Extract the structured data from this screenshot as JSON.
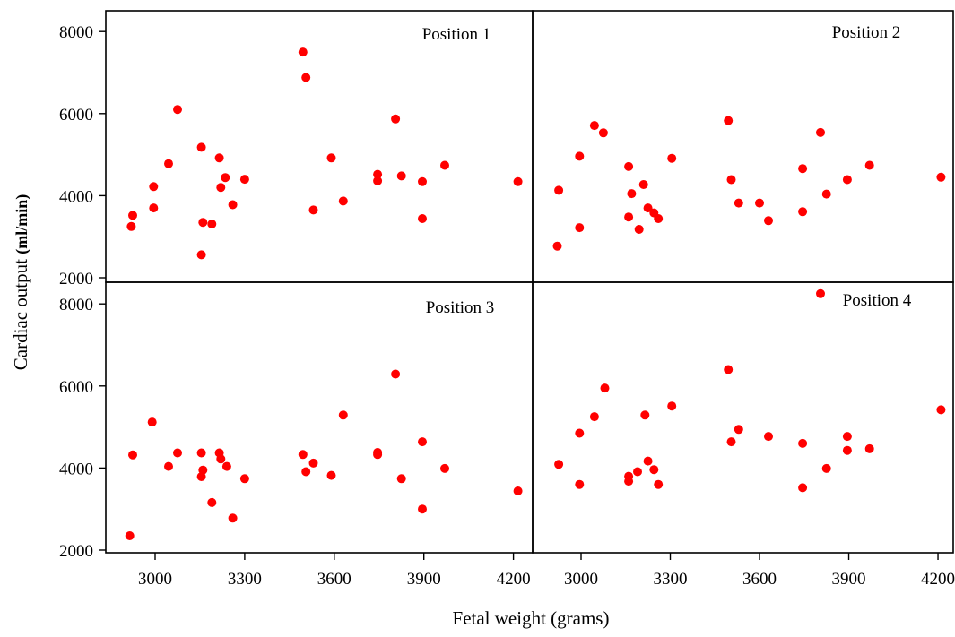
{
  "chart_data": {
    "type": "scatter",
    "layout": "2x2 faceted panels",
    "xlabel": "Fetal weight (grams)",
    "ylabel_main": "Cardiac output ",
    "ylabel_unit": "(ml/min)",
    "xlim": [
      2880,
      4310
    ],
    "ylim": [
      1900,
      8500
    ],
    "xticks": [
      3000,
      3300,
      3600,
      3900,
      4200
    ],
    "yticks": [
      2000,
      4000,
      6000,
      8000
    ],
    "grid": false,
    "point_color": "#ff0000",
    "panels": [
      {
        "title": "Position 1",
        "points": [
          [
            2920,
            3250
          ],
          [
            2925,
            3520
          ],
          [
            2995,
            4220
          ],
          [
            2995,
            3700
          ],
          [
            3045,
            4780
          ],
          [
            3075,
            6100
          ],
          [
            3155,
            5180
          ],
          [
            3155,
            2560
          ],
          [
            3160,
            3350
          ],
          [
            3190,
            3310
          ],
          [
            3215,
            4920
          ],
          [
            3220,
            4200
          ],
          [
            3235,
            4440
          ],
          [
            3260,
            3780
          ],
          [
            3300,
            4400
          ],
          [
            3495,
            7500
          ],
          [
            3505,
            6880
          ],
          [
            3530,
            3650
          ],
          [
            3590,
            4920
          ],
          [
            3630,
            3870
          ],
          [
            3745,
            4520
          ],
          [
            3745,
            4360
          ],
          [
            3805,
            5870
          ],
          [
            3825,
            4480
          ],
          [
            3895,
            4340
          ],
          [
            3895,
            3440
          ],
          [
            3970,
            4740
          ],
          [
            4215,
            4340
          ]
        ]
      },
      {
        "title": "Position 2",
        "points": [
          [
            2920,
            2770
          ],
          [
            2925,
            4130
          ],
          [
            2995,
            4960
          ],
          [
            2995,
            3220
          ],
          [
            3045,
            5710
          ],
          [
            3075,
            5530
          ],
          [
            3160,
            4710
          ],
          [
            3160,
            3480
          ],
          [
            3170,
            4050
          ],
          [
            3195,
            3180
          ],
          [
            3210,
            4270
          ],
          [
            3225,
            3700
          ],
          [
            3245,
            3580
          ],
          [
            3260,
            3440
          ],
          [
            3305,
            4910
          ],
          [
            3495,
            5830
          ],
          [
            3505,
            4390
          ],
          [
            3530,
            3820
          ],
          [
            3600,
            3820
          ],
          [
            3630,
            3390
          ],
          [
            3745,
            4660
          ],
          [
            3745,
            3610
          ],
          [
            3805,
            5540
          ],
          [
            3825,
            4040
          ],
          [
            3895,
            4390
          ],
          [
            3970,
            4740
          ],
          [
            4210,
            4450
          ]
        ]
      },
      {
        "title": "Position 3",
        "points": [
          [
            2915,
            2350
          ],
          [
            2925,
            4320
          ],
          [
            2990,
            5120
          ],
          [
            3045,
            4040
          ],
          [
            3075,
            4370
          ],
          [
            3155,
            4370
          ],
          [
            3155,
            3790
          ],
          [
            3160,
            3950
          ],
          [
            3190,
            3160
          ],
          [
            3215,
            4370
          ],
          [
            3220,
            4220
          ],
          [
            3240,
            4040
          ],
          [
            3260,
            2780
          ],
          [
            3300,
            3740
          ],
          [
            3495,
            4330
          ],
          [
            3505,
            3910
          ],
          [
            3530,
            4120
          ],
          [
            3590,
            3820
          ],
          [
            3630,
            5290
          ],
          [
            3745,
            4380
          ],
          [
            3745,
            4330
          ],
          [
            3805,
            6290
          ],
          [
            3825,
            3740
          ],
          [
            3895,
            4640
          ],
          [
            3895,
            3000
          ],
          [
            3970,
            3990
          ],
          [
            4215,
            3440
          ]
        ]
      },
      {
        "title": "Position 4",
        "points": [
          [
            2925,
            4090
          ],
          [
            2995,
            4850
          ],
          [
            2995,
            3600
          ],
          [
            3045,
            5250
          ],
          [
            3080,
            5950
          ],
          [
            3160,
            3680
          ],
          [
            3160,
            3800
          ],
          [
            3190,
            3910
          ],
          [
            3215,
            5290
          ],
          [
            3225,
            4170
          ],
          [
            3245,
            3960
          ],
          [
            3260,
            3600
          ],
          [
            3305,
            5510
          ],
          [
            3495,
            6400
          ],
          [
            3505,
            4640
          ],
          [
            3530,
            4940
          ],
          [
            3630,
            4770
          ],
          [
            3745,
            4600
          ],
          [
            3745,
            3520
          ],
          [
            3805,
            8250
          ],
          [
            3825,
            3990
          ],
          [
            3895,
            4770
          ],
          [
            3895,
            4430
          ],
          [
            3970,
            4470
          ],
          [
            4210,
            5420
          ]
        ]
      }
    ]
  }
}
